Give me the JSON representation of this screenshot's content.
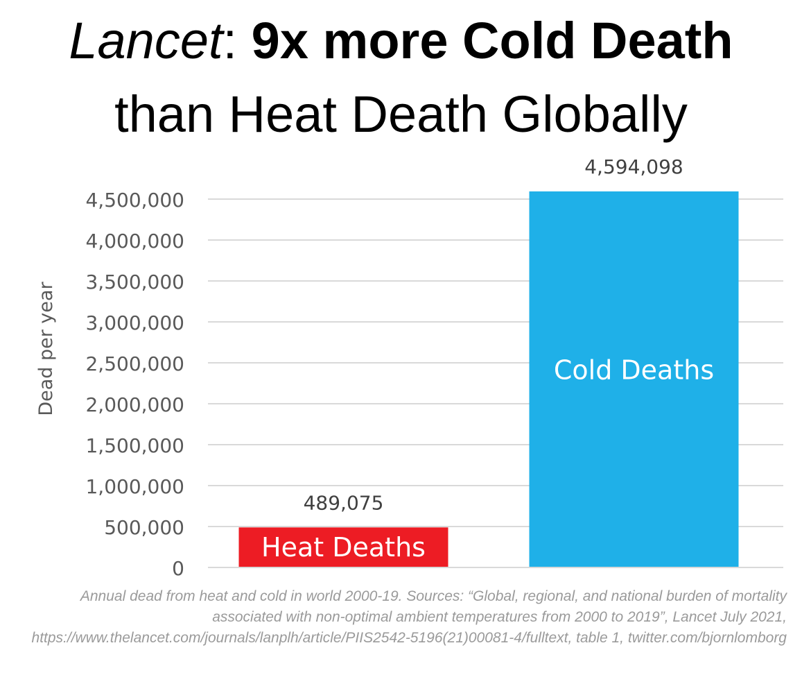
{
  "title": {
    "part1_italic": "Lancet",
    "part1_colon": ":",
    "part1_bold": "9x more Cold Death",
    "line2": "than Heat Death Globally"
  },
  "source_note": "Annual dead from heat and cold in world 2000-19. Sources: “Global, regional, and national burden of mortality associated with non-optimal ambient temperatures from 2000 to 2019”, Lancet July 2021, https://www.thelancet.com/journals/lanplh/article/PIIS2542-5196(21)00081-4/fulltext, table 1, twitter.com/bjornlomborg",
  "chart_data": {
    "type": "bar",
    "categories": [
      "Heat Deaths",
      "Cold Deaths"
    ],
    "values": [
      489075,
      4594098
    ],
    "value_labels": [
      "489,075",
      "4,594,098"
    ],
    "colors": [
      "#ed1c24",
      "#1fb0e8"
    ],
    "ylabel": "Dead per year",
    "xlabel": "",
    "ylim": [
      0,
      4500000
    ],
    "yticks": [
      0,
      500000,
      1000000,
      1500000,
      2000000,
      2500000,
      3000000,
      3500000,
      4000000,
      4500000
    ],
    "ytick_labels": [
      "0",
      "500,000",
      "1,000,000",
      "1,500,000",
      "2,000,000",
      "2,500,000",
      "3,000,000",
      "3,500,000",
      "4,000,000",
      "4,500,000"
    ],
    "grid": true,
    "legend": "none"
  }
}
